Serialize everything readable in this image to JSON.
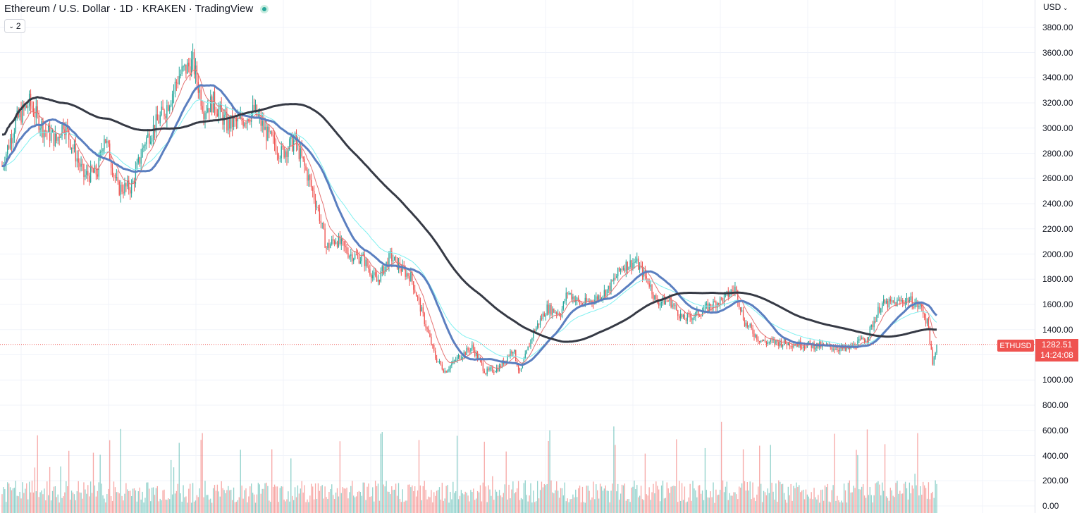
{
  "header": {
    "title": "Ethereum / U.S. Dollar · 1D · KRAKEN · TradingView",
    "indicator_count": "2",
    "status_color": "#26a69a"
  },
  "axis": {
    "currency": "USD",
    "currency_chevron_icon": "chevron-down-icon"
  },
  "last_price": {
    "symbol": "ETHUSD",
    "value": "1282.51",
    "countdown": "14:24:08",
    "color": "#ef5350"
  },
  "chart_data": {
    "type": "candlestick",
    "y_ticks": [
      "3800.00",
      "3600.00",
      "3400.00",
      "3200.00",
      "3000.00",
      "2800.00",
      "2600.00",
      "2400.00",
      "2200.00",
      "2000.00",
      "1800.00",
      "1600.00",
      "1400.00",
      "1200.00",
      "1000.00",
      "800.00",
      "600.00",
      "400.00",
      "200.00",
      "0.00"
    ],
    "ylim": [
      0,
      3900
    ],
    "last_close": 1282.51,
    "colors": {
      "up": "#26a69a",
      "down": "#ef5350",
      "ma200": "#363a45",
      "ma50": "#5b7fc0",
      "ema_cyan": "#80f0f0",
      "ema_red": "#e57373"
    },
    "grid": true,
    "ohlc_anchors": [
      {
        "i": 0,
        "c": 2700
      },
      {
        "i": 10,
        "c": 3050
      },
      {
        "i": 20,
        "c": 3200
      },
      {
        "i": 30,
        "c": 3000
      },
      {
        "i": 40,
        "c": 2900
      },
      {
        "i": 45,
        "c": 3050
      },
      {
        "i": 50,
        "c": 2900
      },
      {
        "i": 60,
        "c": 2620
      },
      {
        "i": 70,
        "c": 2650
      },
      {
        "i": 75,
        "c": 2950
      },
      {
        "i": 85,
        "c": 2520
      },
      {
        "i": 95,
        "c": 2530
      },
      {
        "i": 105,
        "c": 2900
      },
      {
        "i": 120,
        "c": 3150
      },
      {
        "i": 130,
        "c": 3420
      },
      {
        "i": 140,
        "c": 3520
      },
      {
        "i": 148,
        "c": 3150
      },
      {
        "i": 155,
        "c": 3210
      },
      {
        "i": 165,
        "c": 3030
      },
      {
        "i": 175,
        "c": 3050
      },
      {
        "i": 185,
        "c": 3140
      },
      {
        "i": 195,
        "c": 2940
      },
      {
        "i": 205,
        "c": 2800
      },
      {
        "i": 215,
        "c": 2900
      },
      {
        "i": 225,
        "c": 2600
      },
      {
        "i": 232,
        "c": 2350
      },
      {
        "i": 238,
        "c": 2050
      },
      {
        "i": 245,
        "c": 2120
      },
      {
        "i": 255,
        "c": 2000
      },
      {
        "i": 265,
        "c": 1960
      },
      {
        "i": 275,
        "c": 1780
      },
      {
        "i": 285,
        "c": 1980
      },
      {
        "i": 295,
        "c": 1860
      },
      {
        "i": 300,
        "c": 1820
      },
      {
        "i": 310,
        "c": 1470
      },
      {
        "i": 318,
        "c": 1180
      },
      {
        "i": 325,
        "c": 1070
      },
      {
        "i": 335,
        "c": 1180
      },
      {
        "i": 345,
        "c": 1260
      },
      {
        "i": 355,
        "c": 1060
      },
      {
        "i": 365,
        "c": 1100
      },
      {
        "i": 375,
        "c": 1250
      },
      {
        "i": 380,
        "c": 1050
      },
      {
        "i": 390,
        "c": 1380
      },
      {
        "i": 400,
        "c": 1570
      },
      {
        "i": 410,
        "c": 1530
      },
      {
        "i": 415,
        "c": 1700
      },
      {
        "i": 425,
        "c": 1600
      },
      {
        "i": 435,
        "c": 1640
      },
      {
        "i": 445,
        "c": 1720
      },
      {
        "i": 455,
        "c": 1900
      },
      {
        "i": 465,
        "c": 1940
      },
      {
        "i": 475,
        "c": 1770
      },
      {
        "i": 480,
        "c": 1620
      },
      {
        "i": 490,
        "c": 1630
      },
      {
        "i": 500,
        "c": 1480
      },
      {
        "i": 510,
        "c": 1520
      },
      {
        "i": 520,
        "c": 1590
      },
      {
        "i": 530,
        "c": 1650
      },
      {
        "i": 538,
        "c": 1730
      },
      {
        "i": 545,
        "c": 1460
      },
      {
        "i": 555,
        "c": 1330
      },
      {
        "i": 560,
        "c": 1300
      },
      {
        "i": 570,
        "c": 1300
      },
      {
        "i": 580,
        "c": 1290
      },
      {
        "i": 590,
        "c": 1280
      },
      {
        "i": 600,
        "c": 1270
      },
      {
        "i": 610,
        "c": 1260
      },
      {
        "i": 620,
        "c": 1240
      },
      {
        "i": 628,
        "c": 1290
      },
      {
        "i": 635,
        "c": 1340
      },
      {
        "i": 645,
        "c": 1600
      },
      {
        "i": 655,
        "c": 1610
      },
      {
        "i": 665,
        "c": 1640
      },
      {
        "i": 675,
        "c": 1570
      },
      {
        "i": 680,
        "c": 1420
      },
      {
        "i": 683,
        "c": 1110
      },
      {
        "i": 686,
        "c": 1280
      }
    ],
    "volume_ylim": [
      0,
      1000
    ]
  }
}
